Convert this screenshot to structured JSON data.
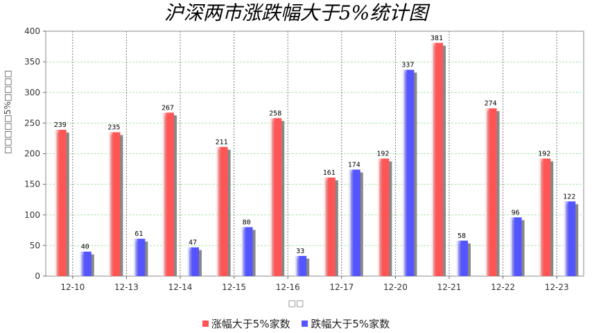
{
  "chart_data": {
    "type": "bar",
    "title": "沪深两市涨跌幅大于5%统计图",
    "xlabel": "□□",
    "ylabel": "□□□□□5%□□□□",
    "categories": [
      "12-10",
      "12-13",
      "12-14",
      "12-15",
      "12-16",
      "12-17",
      "12-20",
      "12-21",
      "12-22",
      "12-23"
    ],
    "series": [
      {
        "name": "涨幅大于5%家数",
        "color": "#ff5555",
        "values": [
          239,
          235,
          267,
          211,
          258,
          161,
          192,
          381,
          274,
          192
        ]
      },
      {
        "name": "跌幅大于5%家数",
        "color": "#5555ff",
        "values": [
          40,
          61,
          47,
          80,
          33,
          174,
          337,
          58,
          96,
          122
        ]
      }
    ],
    "ylim": [
      0,
      400
    ],
    "yticks": [
      0,
      50,
      100,
      150,
      200,
      250,
      300,
      350,
      400
    ],
    "grid": true,
    "legend_position": "bottom"
  }
}
